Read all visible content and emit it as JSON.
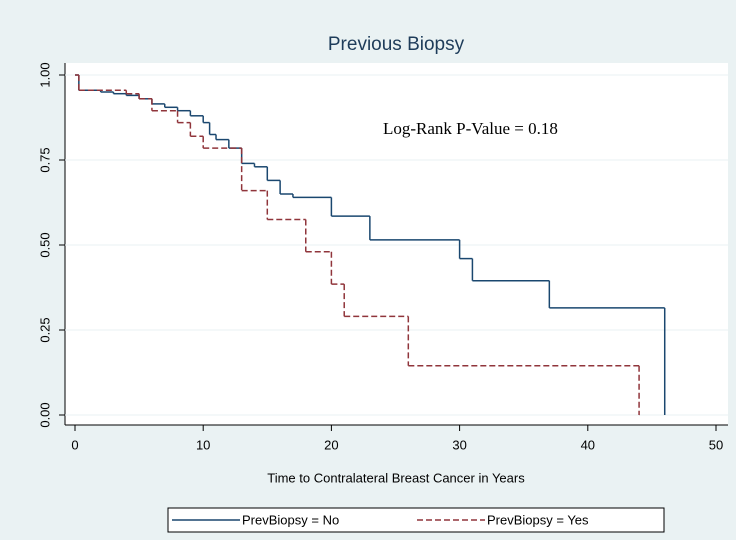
{
  "chart_data": {
    "type": "step",
    "title": "Previous Biopsy",
    "xlabel": "Time to Contralateral Breast Cancer in Years",
    "annotation": "Log-Rank P-Value = 0.18",
    "xlim": [
      0,
      50
    ],
    "xticks": [
      0,
      10,
      20,
      30,
      40,
      50
    ],
    "ylim": [
      0,
      1
    ],
    "yticks": [
      {
        "value": 0,
        "label": "0.00"
      },
      {
        "value": 0.25,
        "label": "0.25"
      },
      {
        "value": 0.5,
        "label": "0.50"
      },
      {
        "value": 0.75,
        "label": "0.75"
      },
      {
        "value": 1,
        "label": "1.00"
      }
    ],
    "grid": true,
    "legend": "bottom",
    "series": [
      {
        "name": "PrevBiopsy = No",
        "color": "#1a476f",
        "dash": false,
        "x": [
          0,
          0.3,
          2,
          3,
          4,
          5,
          6,
          7,
          8,
          9,
          10,
          10.5,
          11,
          12,
          13,
          14,
          15,
          16,
          17,
          20,
          23,
          30,
          31,
          37,
          46
        ],
        "values": [
          1,
          0.955,
          0.95,
          0.945,
          0.94,
          0.93,
          0.915,
          0.905,
          0.895,
          0.88,
          0.86,
          0.825,
          0.81,
          0.785,
          0.74,
          0.73,
          0.69,
          0.65,
          0.64,
          0.585,
          0.515,
          0.46,
          0.395,
          0.315,
          0
        ]
      },
      {
        "name": "PrevBiopsy = Yes",
        "color": "#90353b",
        "dash": true,
        "x": [
          0,
          0.3,
          4,
          5,
          6,
          8,
          9,
          10,
          13,
          15,
          18,
          20,
          21,
          26,
          44
        ],
        "values": [
          1,
          0.955,
          0.945,
          0.93,
          0.895,
          0.86,
          0.82,
          0.785,
          0.66,
          0.575,
          0.48,
          0.385,
          0.29,
          0.145,
          0
        ]
      }
    ]
  }
}
